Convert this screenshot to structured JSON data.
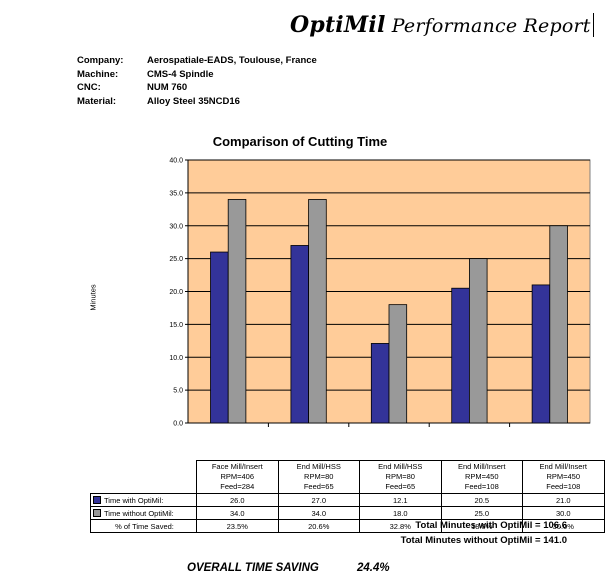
{
  "header": {
    "brand": "OptiMil",
    "title": "Performance Report"
  },
  "info": [
    {
      "key": "Company:",
      "value": "Aerospatiale-EADS, Toulouse, France"
    },
    {
      "key": "Machine:",
      "value": "CMS-4 Spindle"
    },
    {
      "key": "CNC:",
      "value": "NUM 760"
    },
    {
      "key": "Material:",
      "value": "Alloy Steel 35NCD16"
    }
  ],
  "chart_data": {
    "type": "bar",
    "title": "Comparison of Cutting Time",
    "xlabel": "",
    "ylabel": "Minutes",
    "ylim": [
      0,
      40
    ],
    "yticks": [
      "0.0",
      "5.0",
      "10.0",
      "15.0",
      "20.0",
      "25.0",
      "30.0",
      "35.0",
      "40.0"
    ],
    "grid": true,
    "background": "#FFCC99",
    "categories": [
      [
        "Face Mill/Insert",
        "RPM=406",
        "Feed=284"
      ],
      [
        "End Mill/HSS",
        "RPM=80",
        "Feed=65"
      ],
      [
        "End Mill/HSS",
        "RPM=80",
        "Feed=65"
      ],
      [
        "End Mill/Insert",
        "RPM=450",
        "Feed=108"
      ],
      [
        "End Mill/Insert",
        "RPM=450",
        "Feed=108"
      ]
    ],
    "series": [
      {
        "name": "Time with OptiMil:",
        "color": "#333399",
        "values": [
          26.0,
          27.0,
          12.1,
          20.5,
          21.0
        ],
        "labels": [
          "26.0",
          "27.0",
          "12.1",
          "20.5",
          "21.0"
        ]
      },
      {
        "name": "Time without OptiMil:",
        "color": "#999999",
        "values": [
          34.0,
          34.0,
          18.0,
          25.0,
          30.0
        ],
        "labels": [
          "34.0",
          "34.0",
          "18.0",
          "25.0",
          "30.0"
        ]
      }
    ],
    "percent_row": {
      "label": "% of Time Saved:",
      "values": [
        "23.5%",
        "20.6%",
        "32.8%",
        "18.0%",
        "30.0%"
      ]
    }
  },
  "totals": {
    "with": "Total Minutes with OptiMil = 106.6",
    "without": "Total Minutes without OptiMil = 141.0"
  },
  "overall": {
    "label": "OVERALL TIME SAVING",
    "value": "24.4%"
  }
}
